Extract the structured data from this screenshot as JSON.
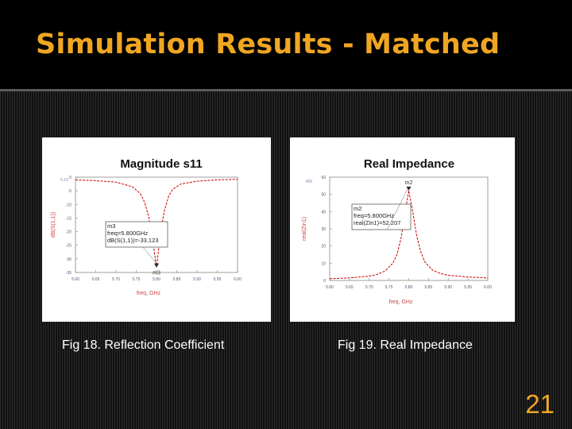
{
  "slide": {
    "title": "Simulation Results - Matched",
    "page_number": "21",
    "accent_color": "#f0a622"
  },
  "captions": {
    "left": "Fig 18. Reflection Coefficient",
    "right": "Fig 19. Real Impedance"
  },
  "chart_data": [
    {
      "type": "line",
      "title": "Magnitude s11",
      "xlabel": "freq, GHz",
      "ylabel": "dB(S(1,1))",
      "xlim": [
        5.6,
        6.0
      ],
      "ylim": [
        -35,
        0
      ],
      "corner_label": "5.10",
      "xticks": [
        "5.60",
        "5.65",
        "5.70",
        "5.75",
        "5.80",
        "5.85",
        "5.90",
        "5.95",
        "6.00"
      ],
      "yticks": [
        "0",
        "-5",
        "-10",
        "-15",
        "-20",
        "-25",
        "-30",
        "-35"
      ],
      "series": [
        {
          "color": "#cc0000",
          "x": [
            5.6,
            5.65,
            5.7,
            5.74,
            5.76,
            5.77,
            5.78,
            5.79,
            5.795,
            5.8,
            5.805,
            5.81,
            5.82,
            5.83,
            5.84,
            5.86,
            5.9,
            5.95,
            6.0
          ],
          "y": [
            -1.0,
            -1.3,
            -1.8,
            -3.5,
            -6.0,
            -9.0,
            -14.0,
            -22.0,
            -28.0,
            -33.1,
            -27.0,
            -20.0,
            -12.0,
            -7.0,
            -4.5,
            -2.5,
            -1.5,
            -1.0,
            -0.8
          ]
        }
      ],
      "marker": {
        "name": "m3",
        "x": 5.8,
        "y": -33.123,
        "lines": [
          "m3",
          "freq=5.800GHz",
          "dB(S(1,1))=-33.123"
        ]
      }
    },
    {
      "type": "line",
      "title": "Real Impedance",
      "xlabel": "freq, GHz",
      "ylabel": "real(Zin1)",
      "xlim": [
        5.6,
        6.0
      ],
      "ylim": [
        0,
        60
      ],
      "corner_label": "400",
      "xticks": [
        "5.60",
        "5.65",
        "5.70",
        "5.75",
        "5.80",
        "5.85",
        "5.90",
        "5.95",
        "6.00"
      ],
      "yticks": [
        "60",
        "50",
        "40",
        "30",
        "20",
        "10",
        "0"
      ],
      "series": [
        {
          "color": "#cc0000",
          "x": [
            5.6,
            5.65,
            5.7,
            5.72,
            5.74,
            5.76,
            5.77,
            5.78,
            5.79,
            5.8,
            5.81,
            5.82,
            5.83,
            5.84,
            5.86,
            5.88,
            5.9,
            5.95,
            6.0
          ],
          "y": [
            1.0,
            1.5,
            2.5,
            3.5,
            5.5,
            10.0,
            15.0,
            24.0,
            38.0,
            52.2,
            40.0,
            26.0,
            17.0,
            11.0,
            6.0,
            4.0,
            3.0,
            2.0,
            1.5
          ]
        }
      ],
      "marker": {
        "name": "m2",
        "x": 5.8,
        "y": 52.207,
        "lines": [
          "m2",
          "freq=5.800GHz",
          "real(Zin1)=52.207"
        ]
      }
    }
  ]
}
